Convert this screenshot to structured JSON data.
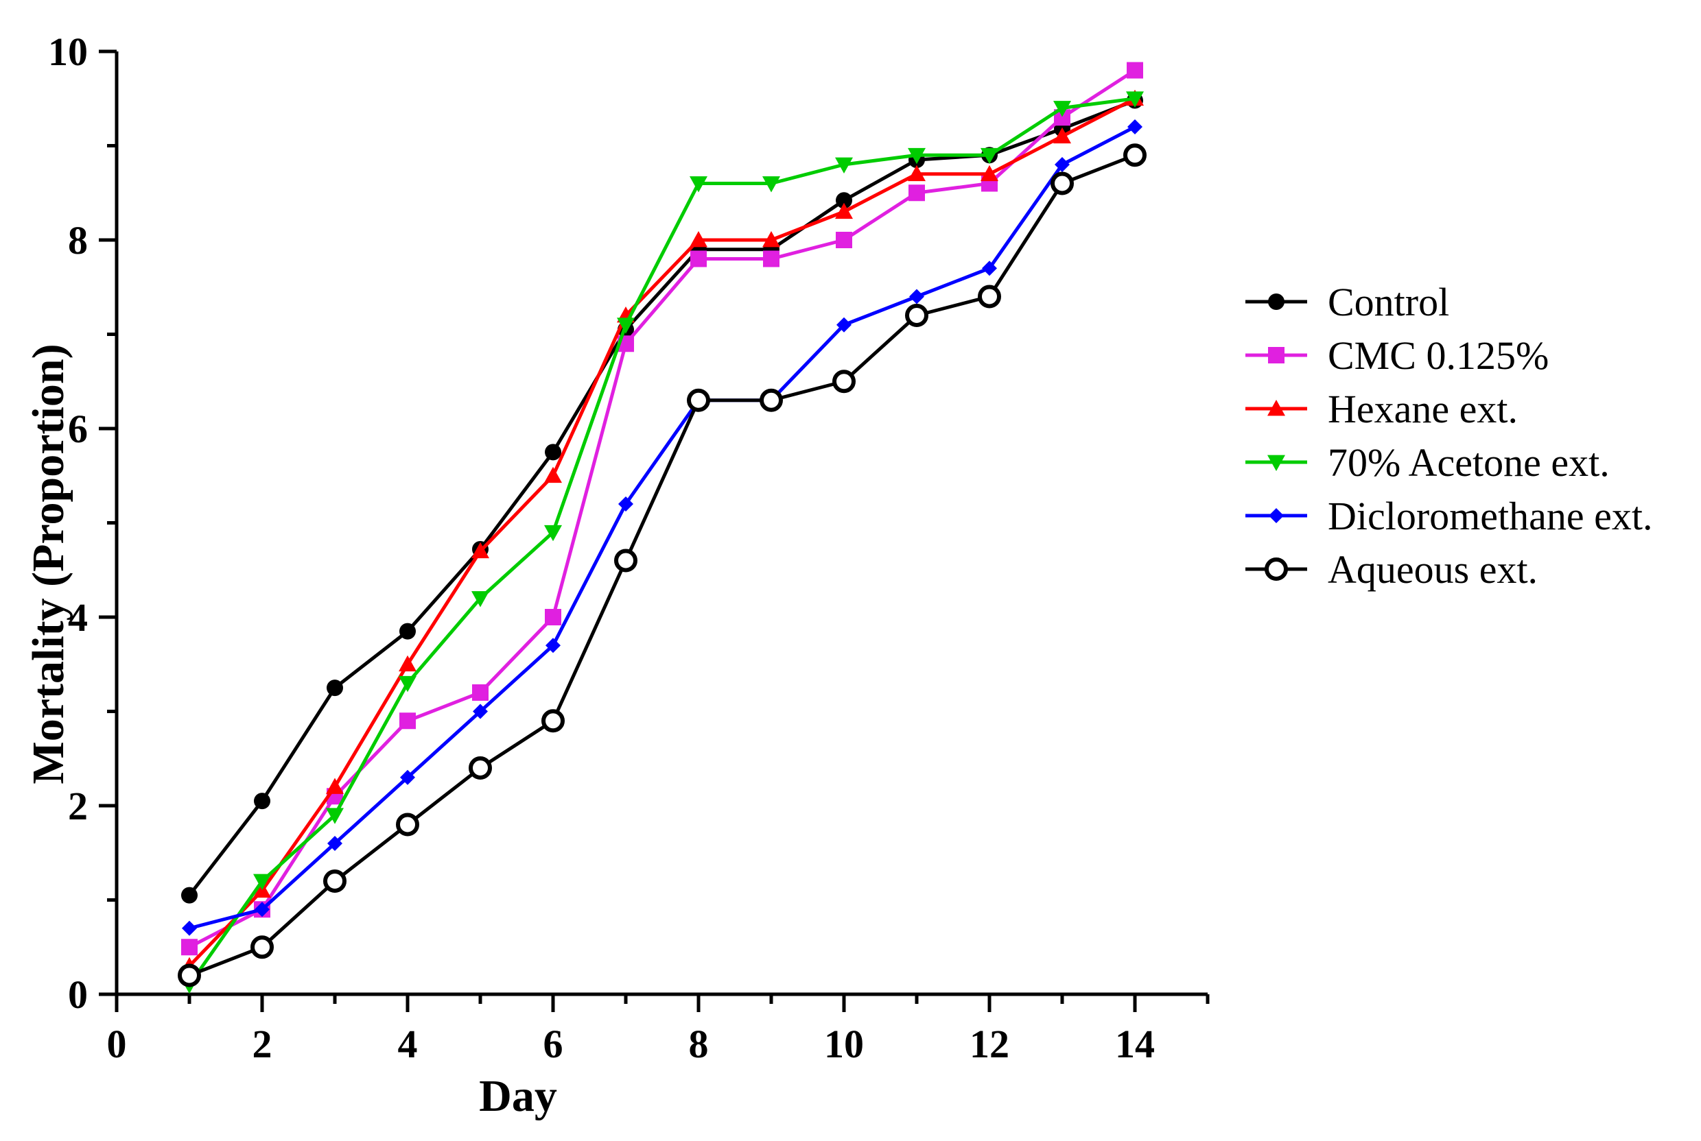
{
  "chart_data": {
    "type": "line",
    "title": "",
    "xlabel": "Day",
    "ylabel": "Mortality (Proportion)",
    "xlim": [
      0,
      15
    ],
    "ylim": [
      0,
      10
    ],
    "x_ticks": [
      "0",
      "2",
      "4",
      "6",
      "8",
      "10",
      "12",
      "14"
    ],
    "y_ticks": [
      "0",
      "2",
      "4",
      "6",
      "8",
      "10"
    ],
    "grid": false,
    "legend_position": "right",
    "x": [
      1,
      2,
      3,
      4,
      5,
      6,
      7,
      8,
      9,
      10,
      11,
      12,
      13,
      14
    ],
    "series": [
      {
        "name": "Control",
        "color": "#000000",
        "marker": "circle-filled",
        "values": [
          1.05,
          2.05,
          3.25,
          3.85,
          4.72,
          5.75,
          7.05,
          7.9,
          7.9,
          8.42,
          8.85,
          8.9,
          9.18,
          9.48
        ]
      },
      {
        "name": "CMC 0.125%",
        "color": "#e020e0",
        "marker": "square",
        "values": [
          0.5,
          0.9,
          2.1,
          2.9,
          3.2,
          4.0,
          6.9,
          7.8,
          7.8,
          8.0,
          8.5,
          8.6,
          9.3,
          9.8
        ]
      },
      {
        "name": "Hexane ext.",
        "color": "#ff0000",
        "marker": "triangle-up",
        "values": [
          0.3,
          1.1,
          2.2,
          3.5,
          4.7,
          5.5,
          7.2,
          8.0,
          8.0,
          8.3,
          8.7,
          8.7,
          9.1,
          9.5
        ]
      },
      {
        "name": "70% Acetone ext.",
        "color": "#00cc00",
        "marker": "triangle-down",
        "values": [
          0.1,
          1.2,
          1.9,
          3.3,
          4.2,
          4.9,
          7.1,
          8.6,
          8.6,
          8.8,
          8.9,
          8.9,
          9.4,
          9.5
        ]
      },
      {
        "name": "Dicloromethane ext.",
        "color": "#0000ff",
        "marker": "diamond",
        "values": [
          0.7,
          0.9,
          1.6,
          2.3,
          3.0,
          3.7,
          5.2,
          6.3,
          6.3,
          7.1,
          7.4,
          7.7,
          8.8,
          9.2
        ]
      },
      {
        "name": "Aqueous ext.",
        "color": "#000000",
        "marker": "circle-open",
        "values": [
          0.2,
          0.5,
          1.2,
          1.8,
          2.4,
          2.9,
          4.6,
          6.3,
          6.3,
          6.5,
          7.2,
          7.4,
          8.6,
          8.9
        ]
      }
    ]
  }
}
